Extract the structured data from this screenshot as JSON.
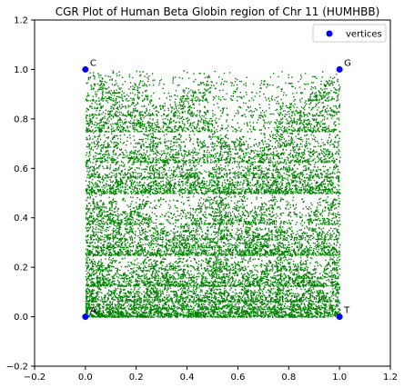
{
  "chart_data": {
    "type": "scatter",
    "title": "CGR Plot of Human Beta Globin region of Chr 11 (HUMHBB)",
    "xlabel": "",
    "ylabel": "",
    "xlim": [
      -0.2,
      1.2
    ],
    "ylim": [
      -0.2,
      1.2
    ],
    "xticks": [
      -0.2,
      0.0,
      0.2,
      0.4,
      0.6,
      0.8,
      1.0,
      1.2
    ],
    "yticks": [
      -0.2,
      0.0,
      0.2,
      0.4,
      0.6,
      0.8,
      1.0,
      1.2
    ],
    "xtick_labels": [
      "−0.2",
      "0.0",
      "0.2",
      "0.4",
      "0.6",
      "0.8",
      "1.0",
      "1.2"
    ],
    "ytick_labels": [
      "−0.2",
      "0.0",
      "0.2",
      "0.4",
      "0.6",
      "0.8",
      "1.0",
      "1.2"
    ],
    "grid": false,
    "legend_position": "top-right",
    "series": [
      {
        "name": "vertices",
        "color": "#0000ff",
        "points": [
          {
            "x": 0,
            "y": 0,
            "label": "A"
          },
          {
            "x": 0,
            "y": 1,
            "label": "C"
          },
          {
            "x": 1,
            "y": 1,
            "label": "G"
          },
          {
            "x": 1,
            "y": 0,
            "label": "T"
          }
        ]
      },
      {
        "color": "#008000",
        "pattern": "chaos-game-representation",
        "filled_region": [
          [
            0,
            0
          ],
          [
            1,
            1
          ]
        ]
      }
    ]
  }
}
